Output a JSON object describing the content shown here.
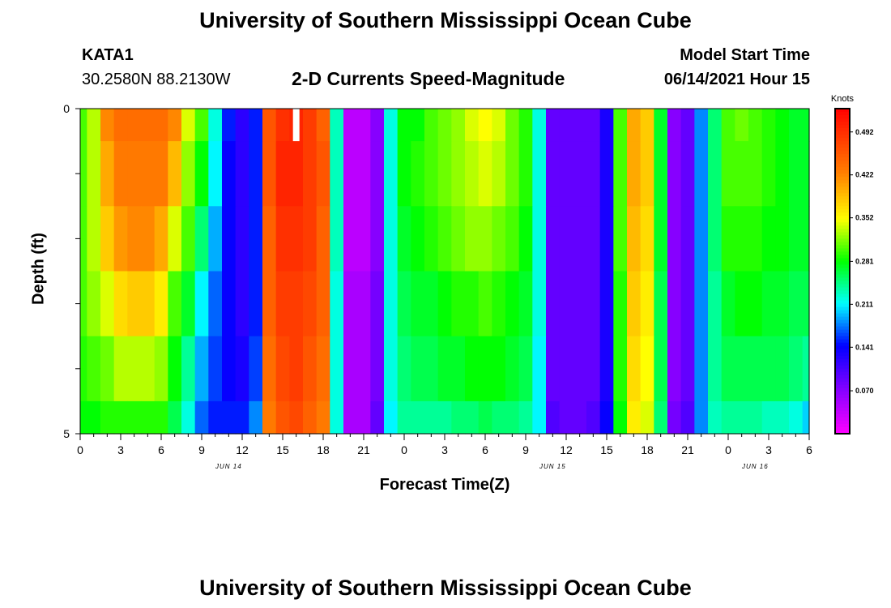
{
  "header": {
    "title": "University of Southern Mississippi Ocean Cube",
    "station": "KATA1",
    "coords": "30.2580N  88.2130W",
    "chart_title": "2-D Currents Speed-Magnitude",
    "model_label": "Model Start Time",
    "model_time": "06/14/2021 Hour 15"
  },
  "footer": {
    "title": "University of Southern Mississippi Ocean Cube"
  },
  "chart_data": {
    "type": "heatmap",
    "title": "2-D Currents Speed-Magnitude",
    "xlabel": "Forecast Time(Z)",
    "ylabel": "Depth (ft)",
    "x_ticks": [
      "0",
      "3",
      "6",
      "9",
      "12",
      "15",
      "18",
      "21",
      "0",
      "3",
      "6",
      "9",
      "12",
      "15",
      "18",
      "21",
      "0",
      "3",
      "6"
    ],
    "date_labels": [
      {
        "label": "JUN 14",
        "hour": 11
      },
      {
        "label": "JUN 15",
        "hour": 35
      },
      {
        "label": "JUN 16",
        "hour": 50
      }
    ],
    "x_range_hours": [
      0,
      54
    ],
    "y_ticks": [
      "0",
      "5"
    ],
    "y_range_ft": [
      0,
      5
    ],
    "colorbar": {
      "unit": "Knots",
      "ticks": [
        "0.492",
        "0.422",
        "0.352",
        "0.281",
        "0.211",
        "0.141",
        "0.070"
      ],
      "range": [
        0.0,
        0.53
      ]
    },
    "depth_layers_ft": [
      0.25,
      1.25,
      2.25,
      3.25,
      4.25,
      4.75
    ],
    "time_hours": [
      0,
      1,
      2,
      3,
      4,
      5,
      6,
      7,
      8,
      9,
      10,
      11,
      12,
      13,
      14,
      15,
      16,
      17,
      18,
      19,
      20,
      21,
      22,
      23,
      24,
      25,
      26,
      27,
      28,
      29,
      30,
      31,
      32,
      33,
      34,
      35,
      36,
      37,
      38,
      39,
      40,
      41,
      42,
      43,
      44,
      45,
      46,
      47,
      48,
      49,
      50,
      51,
      52,
      53,
      54
    ],
    "speed_knots": [
      [
        0.3,
        0.33,
        0.42,
        0.44,
        0.44,
        0.44,
        0.44,
        0.42,
        0.34,
        0.3,
        0.22,
        0.15,
        0.12,
        0.15,
        0.46,
        0.49,
        0.5,
        0.48,
        0.45,
        0.23,
        0.04,
        0.04,
        0.07,
        0.22,
        0.28,
        0.28,
        0.3,
        0.31,
        0.32,
        0.34,
        0.35,
        0.34,
        0.31,
        0.29,
        0.22,
        0.09,
        0.09,
        0.09,
        0.09,
        0.13,
        0.3,
        0.4,
        0.38,
        0.27,
        0.07,
        0.09,
        0.18,
        0.25,
        0.3,
        0.31,
        0.3,
        0.29,
        0.28,
        0.27,
        0.27
      ],
      [
        0.3,
        0.33,
        0.4,
        0.43,
        0.43,
        0.43,
        0.43,
        0.39,
        0.32,
        0.28,
        0.21,
        0.14,
        0.12,
        0.15,
        0.46,
        0.5,
        0.5,
        0.48,
        0.46,
        0.23,
        0.04,
        0.04,
        0.07,
        0.22,
        0.28,
        0.29,
        0.3,
        0.31,
        0.32,
        0.33,
        0.34,
        0.33,
        0.31,
        0.29,
        0.22,
        0.09,
        0.09,
        0.09,
        0.09,
        0.13,
        0.3,
        0.4,
        0.38,
        0.27,
        0.07,
        0.09,
        0.18,
        0.25,
        0.3,
        0.3,
        0.3,
        0.29,
        0.28,
        0.27,
        0.27
      ],
      [
        0.3,
        0.33,
        0.38,
        0.41,
        0.42,
        0.42,
        0.4,
        0.34,
        0.3,
        0.25,
        0.19,
        0.14,
        0.12,
        0.15,
        0.45,
        0.49,
        0.49,
        0.48,
        0.45,
        0.23,
        0.04,
        0.04,
        0.07,
        0.22,
        0.27,
        0.28,
        0.29,
        0.3,
        0.31,
        0.32,
        0.32,
        0.31,
        0.3,
        0.28,
        0.22,
        0.09,
        0.09,
        0.09,
        0.09,
        0.13,
        0.3,
        0.39,
        0.37,
        0.27,
        0.07,
        0.09,
        0.18,
        0.25,
        0.29,
        0.29,
        0.29,
        0.28,
        0.28,
        0.27,
        0.27
      ],
      [
        0.3,
        0.32,
        0.34,
        0.37,
        0.38,
        0.38,
        0.36,
        0.3,
        0.27,
        0.21,
        0.17,
        0.14,
        0.12,
        0.15,
        0.45,
        0.48,
        0.48,
        0.47,
        0.45,
        0.22,
        0.05,
        0.05,
        0.08,
        0.22,
        0.26,
        0.27,
        0.27,
        0.28,
        0.29,
        0.29,
        0.3,
        0.29,
        0.28,
        0.27,
        0.22,
        0.09,
        0.09,
        0.09,
        0.09,
        0.13,
        0.29,
        0.38,
        0.36,
        0.26,
        0.07,
        0.09,
        0.18,
        0.24,
        0.27,
        0.28,
        0.28,
        0.27,
        0.27,
        0.26,
        0.26
      ],
      [
        0.29,
        0.3,
        0.31,
        0.33,
        0.33,
        0.33,
        0.32,
        0.28,
        0.24,
        0.19,
        0.16,
        0.14,
        0.13,
        0.16,
        0.44,
        0.47,
        0.48,
        0.46,
        0.44,
        0.22,
        0.05,
        0.05,
        0.08,
        0.22,
        0.25,
        0.26,
        0.26,
        0.27,
        0.27,
        0.28,
        0.28,
        0.28,
        0.27,
        0.26,
        0.21,
        0.09,
        0.09,
        0.09,
        0.09,
        0.13,
        0.29,
        0.37,
        0.35,
        0.26,
        0.07,
        0.09,
        0.18,
        0.24,
        0.26,
        0.26,
        0.26,
        0.26,
        0.26,
        0.25,
        0.24
      ],
      [
        0.28,
        0.28,
        0.29,
        0.29,
        0.29,
        0.29,
        0.29,
        0.26,
        0.22,
        0.17,
        0.15,
        0.15,
        0.15,
        0.18,
        0.43,
        0.46,
        0.47,
        0.45,
        0.43,
        0.22,
        0.05,
        0.05,
        0.09,
        0.21,
        0.24,
        0.24,
        0.24,
        0.24,
        0.25,
        0.25,
        0.26,
        0.25,
        0.25,
        0.24,
        0.21,
        0.1,
        0.09,
        0.09,
        0.1,
        0.14,
        0.28,
        0.36,
        0.34,
        0.25,
        0.08,
        0.1,
        0.18,
        0.23,
        0.24,
        0.24,
        0.24,
        0.23,
        0.23,
        0.22,
        0.2
      ]
    ],
    "missing_cells": [
      {
        "hour": 16,
        "depth_ft": 0.25
      }
    ]
  }
}
